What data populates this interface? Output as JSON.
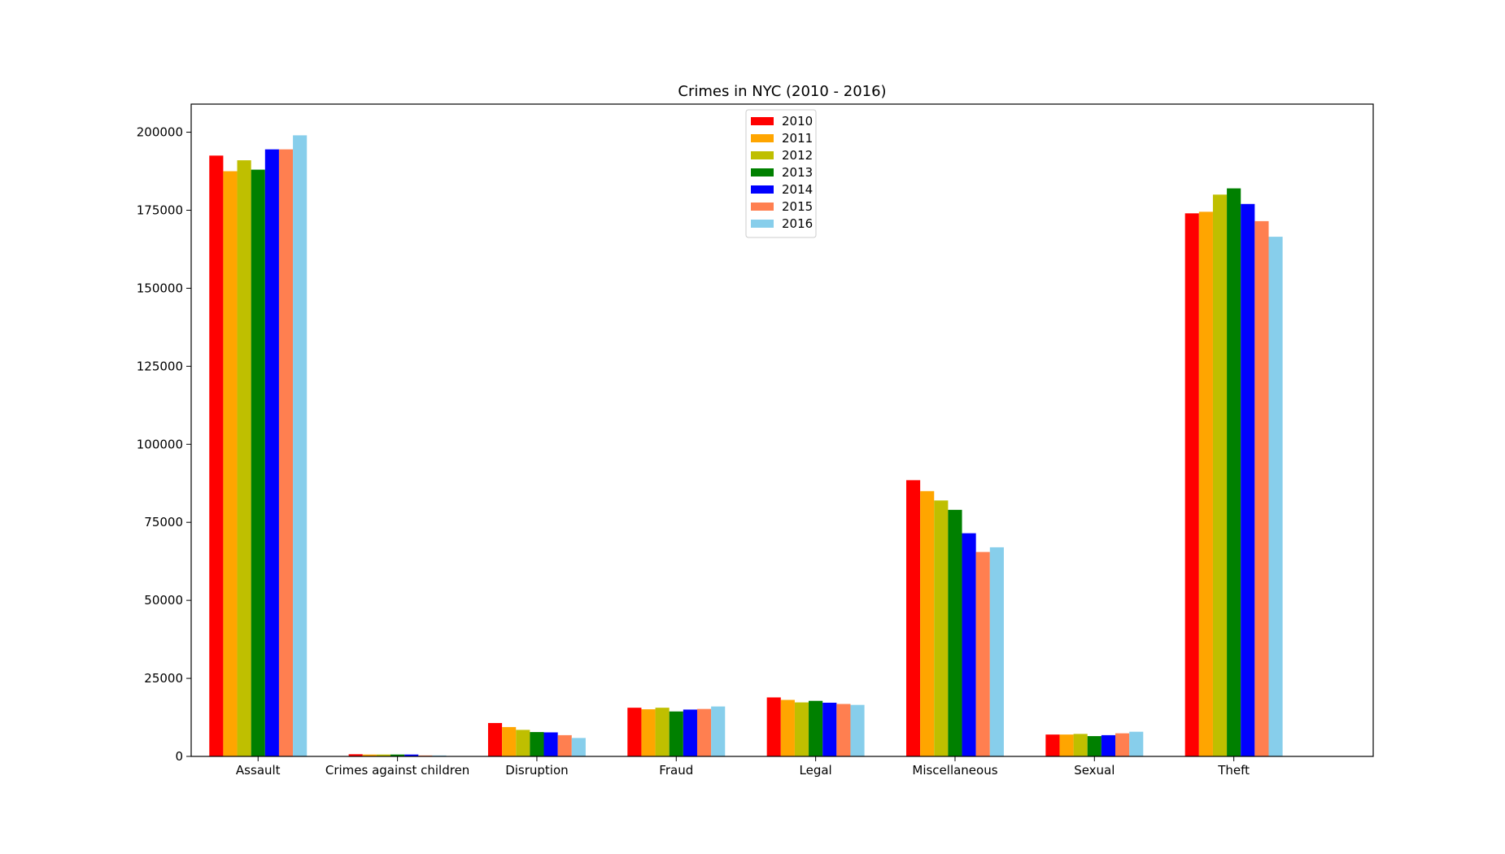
{
  "chart_data": {
    "type": "bar",
    "title": "Crimes in NYC (2010 - 2016)",
    "xlabel": "",
    "ylabel": "",
    "categories": [
      "Assault",
      "Crimes against children",
      "Disruption",
      "Fraud",
      "Legal",
      "Miscellaneous",
      "Sexual",
      "Theft"
    ],
    "ylim": [
      0,
      209000
    ],
    "yticks": [
      0,
      25000,
      50000,
      75000,
      100000,
      125000,
      150000,
      175000,
      200000
    ],
    "grid": false,
    "legend_position": "top-center",
    "series": [
      {
        "name": "2010",
        "color": "#ff0000",
        "values": [
          192500,
          700,
          10700,
          15600,
          18900,
          88500,
          7000,
          174000
        ]
      },
      {
        "name": "2011",
        "color": "#ffa500",
        "values": [
          187500,
          600,
          9400,
          15100,
          18100,
          85000,
          7000,
          174500
        ]
      },
      {
        "name": "2012",
        "color": "#bfbf00",
        "values": [
          191000,
          600,
          8500,
          15600,
          17300,
          82000,
          7200,
          180000
        ]
      },
      {
        "name": "2013",
        "color": "#008000",
        "values": [
          188000,
          600,
          7800,
          14400,
          17800,
          79000,
          6500,
          182000
        ]
      },
      {
        "name": "2014",
        "color": "#0000ff",
        "values": [
          194500,
          600,
          7700,
          15000,
          17200,
          71500,
          6800,
          177000
        ]
      },
      {
        "name": "2015",
        "color": "#ff7f50",
        "values": [
          194500,
          300,
          6800,
          15200,
          16800,
          65500,
          7400,
          171500
        ]
      },
      {
        "name": "2016",
        "color": "#87ceeb",
        "values": [
          199000,
          300,
          5900,
          16000,
          16500,
          67000,
          7900,
          166500
        ]
      }
    ]
  }
}
